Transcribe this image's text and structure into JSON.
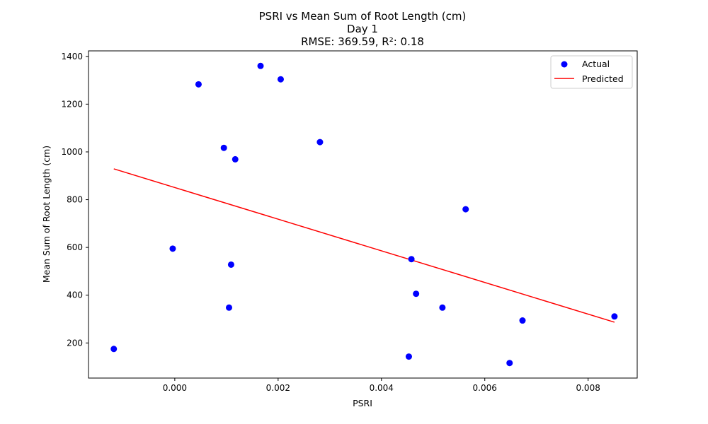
{
  "chart_data": {
    "type": "scatter",
    "title_lines": [
      "PSRI vs Mean Sum of Root Length (cm)",
      "Day 1",
      "RMSE: 369.59, R²: 0.18"
    ],
    "xlabel": "PSRI",
    "ylabel": "Mean Sum of Root Length (cm)",
    "xlim": [
      -0.00167,
      0.00895
    ],
    "ylim": [
      53,
      1423
    ],
    "xticks": [
      0.0,
      0.002,
      0.004,
      0.006,
      0.008
    ],
    "xtick_labels": [
      "0.000",
      "0.002",
      "0.004",
      "0.006",
      "0.008"
    ],
    "yticks": [
      200,
      400,
      600,
      800,
      1000,
      1200,
      1400
    ],
    "ytick_labels": [
      "200",
      "400",
      "600",
      "800",
      "1000",
      "1200",
      "1400"
    ],
    "grid": false,
    "legend": {
      "placement": "top-right",
      "entries": [
        {
          "label": "Actual",
          "marker": "circle",
          "color": "#0000ff"
        },
        {
          "label": "Predicted",
          "marker": "line",
          "color": "#ff0000"
        }
      ]
    },
    "series": [
      {
        "name": "Actual",
        "kind": "scatter",
        "color": "#0000ff",
        "points": [
          {
            "x": -0.00118,
            "y": 175
          },
          {
            "x": -4e-05,
            "y": 595
          },
          {
            "x": 0.00046,
            "y": 1283
          },
          {
            "x": 0.00095,
            "y": 1017
          },
          {
            "x": 0.00105,
            "y": 348
          },
          {
            "x": 0.00109,
            "y": 528
          },
          {
            "x": 0.00117,
            "y": 969
          },
          {
            "x": 0.00166,
            "y": 1360
          },
          {
            "x": 0.00205,
            "y": 1304
          },
          {
            "x": 0.00281,
            "y": 1041
          },
          {
            "x": 0.00453,
            "y": 143
          },
          {
            "x": 0.00458,
            "y": 551
          },
          {
            "x": 0.00467,
            "y": 406
          },
          {
            "x": 0.00518,
            "y": 348
          },
          {
            "x": 0.00563,
            "y": 760
          },
          {
            "x": 0.00648,
            "y": 116
          },
          {
            "x": 0.00673,
            "y": 294
          },
          {
            "x": 0.00851,
            "y": 311
          }
        ]
      },
      {
        "name": "Predicted",
        "kind": "line",
        "color": "#ff0000",
        "points": [
          {
            "x": -0.00118,
            "y": 929
          },
          {
            "x": 0.00851,
            "y": 287
          }
        ]
      }
    ]
  }
}
